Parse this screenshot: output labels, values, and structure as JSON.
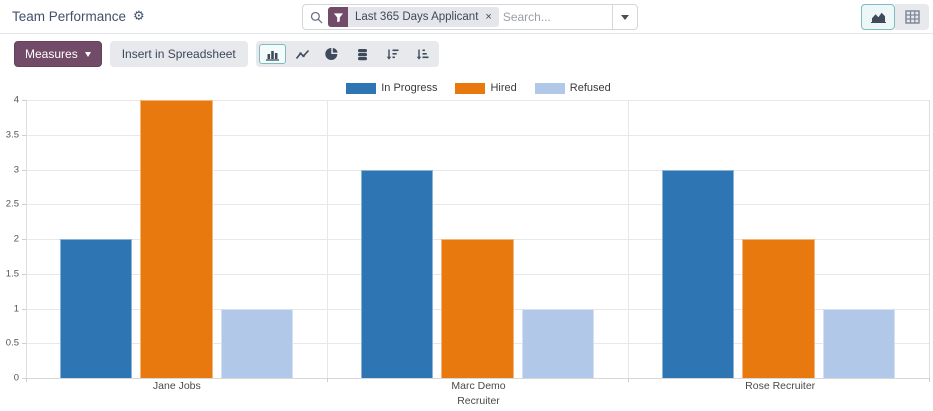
{
  "header": {
    "title": "Team Performance"
  },
  "search": {
    "facet_label": "Last 365 Days Applicant",
    "facet_remove": "×",
    "placeholder": "Search...",
    "icons": [
      "search-icon",
      "filter-funnel-icon",
      "caret-down-icon"
    ]
  },
  "view_switcher": {
    "icons": [
      "graph-view-icon",
      "pivot-view-icon"
    ],
    "active": "graph-view"
  },
  "toolbar": {
    "measures_label": "Measures",
    "insert_label": "Insert in Spreadsheet",
    "icons": [
      "bar-chart-icon",
      "line-chart-icon",
      "pie-chart-icon",
      "stacked-icon",
      "sort-descending-icon",
      "sort-ascending-icon"
    ],
    "active_icon": "bar-chart"
  },
  "colors": {
    "accent_purple": "#714b67",
    "accent_teal_border": "#7ebcc0",
    "series_in_progress": "#2d76b3",
    "series_hired": "#e8790e",
    "series_refused": "#b2c8e8"
  },
  "chart_data": {
    "type": "bar",
    "title": "",
    "categories": [
      "Jane Jobs",
      "Marc Demo",
      "Rose Recruiter"
    ],
    "series": [
      {
        "name": "In Progress",
        "color": "#2d76b3",
        "values": [
          2,
          3,
          3
        ]
      },
      {
        "name": "Hired",
        "color": "#e8790e",
        "values": [
          4,
          2,
          2
        ]
      },
      {
        "name": "Refused",
        "color": "#b2c8e8",
        "values": [
          1,
          1,
          1
        ]
      }
    ],
    "xlabel": "Recruiter",
    "ylabel": "",
    "ylim": [
      0,
      4
    ],
    "yticks": [
      0,
      0.5,
      1,
      1.5,
      2,
      2.5,
      3,
      3.5,
      4
    ],
    "grid": true,
    "legend_position": "top"
  }
}
